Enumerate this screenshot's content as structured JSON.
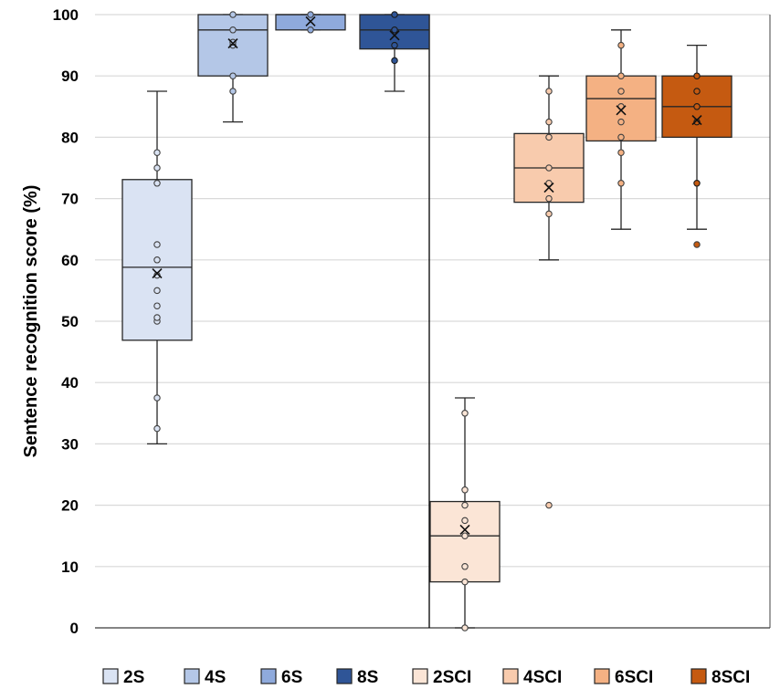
{
  "chart_data": {
    "type": "box",
    "ylabel": "Sentence recognition score (%)",
    "ylim": [
      0,
      100
    ],
    "yticks": [
      "0",
      "10",
      "20",
      "30",
      "40",
      "50",
      "60",
      "70",
      "80",
      "90",
      "100"
    ],
    "grid": true,
    "legend_position": "bottom",
    "legend": [
      "2S",
      "4S",
      "6S",
      "8S",
      "2SCI",
      "4SCI",
      "6SCI",
      "8SCI"
    ],
    "series": [
      {
        "name": "2S",
        "color": "#dae3f3",
        "whisker_low": 30,
        "q1": 46.9,
        "median": 58.8,
        "q3": 73.1,
        "whisker_high": 87.5,
        "mean": 57.8,
        "points": [
          32.5,
          37.5,
          50,
          50.6,
          52.5,
          55,
          57.5,
          60,
          62.5,
          72.5,
          75,
          77.5
        ],
        "outliers": []
      },
      {
        "name": "4S",
        "color": "#b4c7e7",
        "whisker_low": 82.5,
        "q1": 90,
        "median": 97.5,
        "q3": 100,
        "whisker_high": 100,
        "mean": 95.3,
        "points": [
          87.5,
          90,
          95,
          95.5,
          97.5,
          100
        ],
        "outliers": []
      },
      {
        "name": "6S",
        "color": "#8faadc",
        "whisker_low": 97.5,
        "q1": 97.5,
        "median": 100,
        "q3": 100,
        "whisker_high": 100,
        "mean": 98.9,
        "points": [
          97.5,
          100
        ],
        "outliers": []
      },
      {
        "name": "8S",
        "color": "#2f5597",
        "whisker_low": 87.5,
        "q1": 94.4,
        "median": 97.5,
        "q3": 100,
        "whisker_high": 100,
        "mean": 96.6,
        "points": [
          92.5,
          95,
          97.5,
          100
        ],
        "outliers": []
      },
      {
        "name": "2SCI",
        "color": "#fbe5d6",
        "whisker_low": 0,
        "q1": 7.5,
        "median": 15,
        "q3": 20.6,
        "whisker_high": 37.5,
        "mean": 16,
        "points": [
          0,
          7.5,
          10,
          15,
          17.5,
          20,
          22.5,
          35
        ],
        "outliers": []
      },
      {
        "name": "4SCI",
        "color": "#f8cbad",
        "whisker_low": 60,
        "q1": 69.4,
        "median": 75,
        "q3": 80.6,
        "whisker_high": 90,
        "mean": 71.8,
        "points": [
          67.5,
          70,
          72.5,
          75,
          80,
          82.5,
          87.5
        ],
        "outliers": [
          20
        ]
      },
      {
        "name": "6SCI",
        "color": "#f4b183",
        "whisker_low": 65,
        "q1": 79.4,
        "median": 86.3,
        "q3": 90,
        "whisker_high": 97.5,
        "mean": 84.4,
        "points": [
          72.5,
          77.5,
          80,
          82.5,
          85,
          87.5,
          90,
          95
        ],
        "outliers": []
      },
      {
        "name": "8SCI",
        "color": "#c55a11",
        "whisker_low": 65,
        "q1": 80,
        "median": 85,
        "q3": 90,
        "whisker_high": 95,
        "mean": 82.8,
        "points": [
          72.5,
          82.5,
          85,
          87.5,
          90
        ],
        "outliers": [
          62.5
        ]
      }
    ]
  }
}
